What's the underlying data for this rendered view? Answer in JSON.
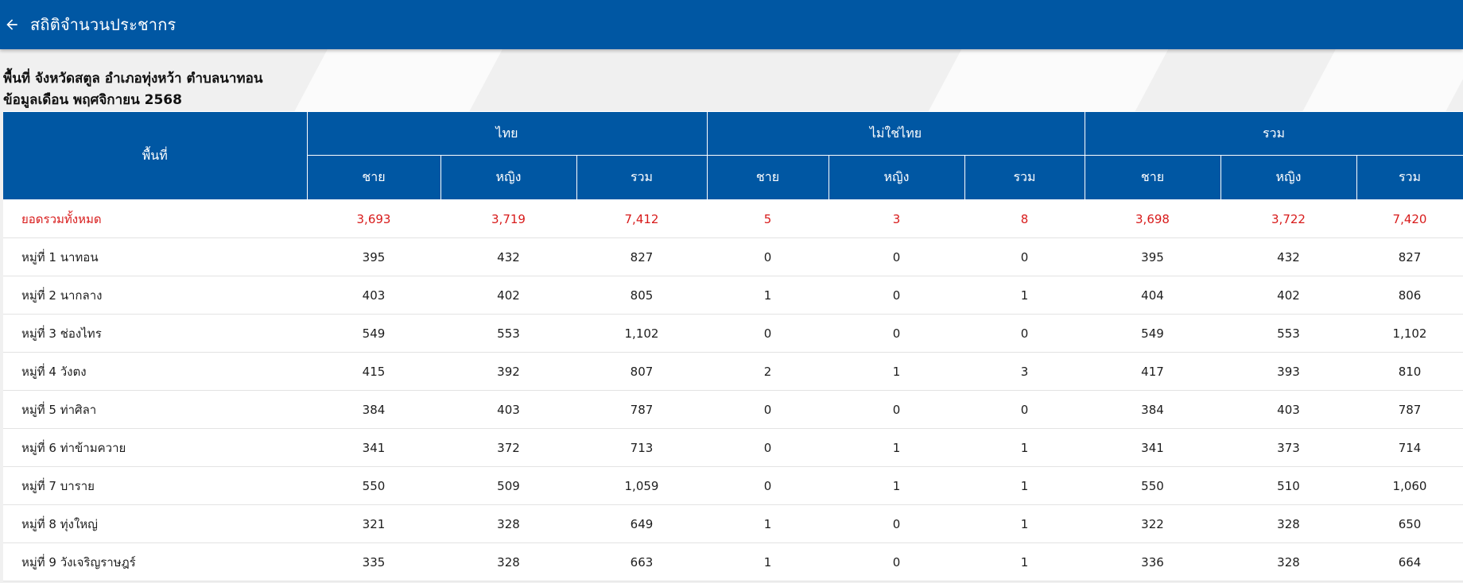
{
  "app": {
    "title": "สถิติจำนวนประชากร",
    "back_icon": "arrow-left-icon",
    "bar_color": "#0057a3"
  },
  "info": {
    "area_line": "พื้นที่ จังหวัดสตูล อำเภอทุ่งหว้า ตำบลนาทอน",
    "month_line": "ข้อมูลเดือน พฤศจิกายน 2568"
  },
  "table": {
    "area_header": "พื้นที่",
    "groups": [
      "ไทย",
      "ไม่ใช่ไทย",
      "รวม"
    ],
    "sub_headers": [
      "ชาย",
      "หญิง",
      "รวม",
      "ชาย",
      "หญิง",
      "รวม",
      "ชาย",
      "หญิง",
      "รวม"
    ],
    "total_color": "#d81b1b",
    "rows": [
      {
        "area": "ยอดรวมทั้งหมด",
        "cells": [
          "3,693",
          "3,719",
          "7,412",
          "5",
          "3",
          "8",
          "3,698",
          "3,722",
          "7,420"
        ]
      },
      {
        "area": "หมู่ที่ 1 นาทอน",
        "cells": [
          "395",
          "432",
          "827",
          "0",
          "0",
          "0",
          "395",
          "432",
          "827"
        ]
      },
      {
        "area": "หมู่ที่ 2 นากลาง",
        "cells": [
          "403",
          "402",
          "805",
          "1",
          "0",
          "1",
          "404",
          "402",
          "806"
        ]
      },
      {
        "area": "หมู่ที่ 3 ช่องไทร",
        "cells": [
          "549",
          "553",
          "1,102",
          "0",
          "0",
          "0",
          "549",
          "553",
          "1,102"
        ]
      },
      {
        "area": "หมู่ที่ 4 วังตง",
        "cells": [
          "415",
          "392",
          "807",
          "2",
          "1",
          "3",
          "417",
          "393",
          "810"
        ]
      },
      {
        "area": "หมู่ที่ 5 ท่าศิลา",
        "cells": [
          "384",
          "403",
          "787",
          "0",
          "0",
          "0",
          "384",
          "403",
          "787"
        ]
      },
      {
        "area": "หมู่ที่ 6 ท่าข้ามควาย",
        "cells": [
          "341",
          "372",
          "713",
          "0",
          "1",
          "1",
          "341",
          "373",
          "714"
        ]
      },
      {
        "area": "หมู่ที่ 7 บาราย",
        "cells": [
          "550",
          "509",
          "1,059",
          "0",
          "1",
          "1",
          "550",
          "510",
          "1,060"
        ]
      },
      {
        "area": "หมู่ที่ 8 ทุ่งใหญ่",
        "cells": [
          "321",
          "328",
          "649",
          "1",
          "0",
          "1",
          "322",
          "328",
          "650"
        ]
      },
      {
        "area": "หมู่ที่ 9 วังเจริญราษฎร์",
        "cells": [
          "335",
          "328",
          "663",
          "1",
          "0",
          "1",
          "336",
          "328",
          "664"
        ]
      }
    ]
  }
}
